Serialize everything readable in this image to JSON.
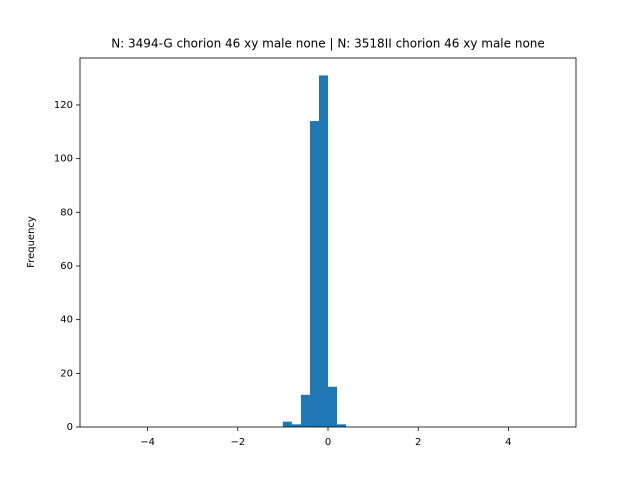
{
  "chart_data": {
    "type": "histogram",
    "title": "N: 3494-G chorion 46 xy male none | N: 3518II chorion 46 xy male none",
    "ylabel": "Frequency",
    "bins": [
      -5,
      -4.8,
      -4.6,
      -4.4,
      -4.2,
      -4,
      -3.8,
      -3.6,
      -3.4,
      -3.2,
      -3,
      -2.8,
      -2.6,
      -2.4,
      -2.2,
      -2,
      -1.8,
      -1.6,
      -1.4,
      -1.2,
      -1,
      -0.8,
      -0.6,
      -0.4,
      -0.2,
      0,
      0.2,
      0.4,
      0.6,
      0.8,
      1,
      1.2,
      1.4,
      1.6,
      1.8,
      2,
      2.2,
      2.4,
      2.6,
      2.8,
      3,
      3.2,
      3.4,
      3.6,
      3.8,
      4,
      4.2,
      4.4,
      4.6,
      4.8,
      5
    ],
    "values": [
      0,
      0,
      0,
      0,
      0,
      0,
      0,
      0,
      0,
      0,
      0,
      0,
      0,
      0,
      0,
      0,
      0,
      0,
      0,
      0,
      2,
      1,
      12,
      114,
      131,
      15,
      1,
      0,
      0,
      0,
      0,
      0,
      0,
      0,
      0,
      0,
      0,
      0,
      0,
      0,
      0,
      0,
      0,
      0,
      0,
      0,
      0,
      0,
      0,
      0
    ],
    "color": "#1f77b4",
    "xlim": [
      -5.5,
      5.5
    ],
    "xticks": [
      {
        "value": -4,
        "label": "−4"
      },
      {
        "value": -2,
        "label": "−2"
      },
      0,
      2,
      4
    ],
    "ylim": [
      0,
      137.5
    ],
    "yticks": [
      0,
      20,
      40,
      60,
      80,
      100,
      120
    ]
  }
}
